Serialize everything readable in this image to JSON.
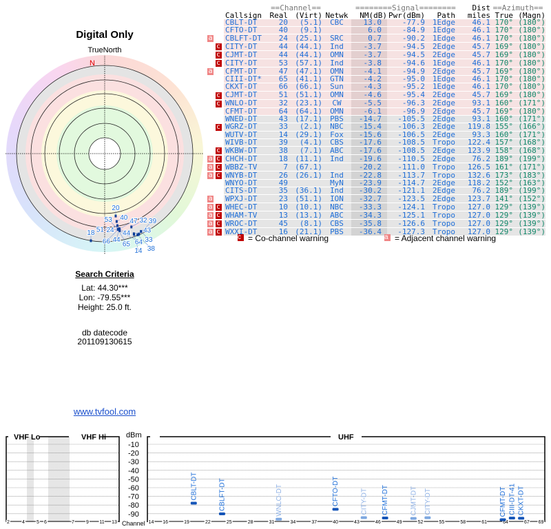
{
  "left_panel": {
    "title": "Digital Only",
    "north_label": "TrueNorth",
    "north_marker": "N",
    "search_criteria": {
      "heading": "Search Criteria",
      "lat": "Lat: 44.30***",
      "lon": "Lon: -79.55***",
      "height": "Height: 25.0 ft."
    },
    "datecode_label": "db datecode",
    "datecode": "201109130615",
    "site_link": "www.tvfool.com"
  },
  "table": {
    "group_headers": {
      "channel": "==Channel==",
      "signal": "========Signal========",
      "dist": "Dist",
      "azimuth": "==Azimuth=="
    },
    "columns": [
      "Callsign",
      "Real",
      "(Virt)",
      "Netwk",
      "NM(dB)",
      "Pwr(dBm)",
      "Path",
      "miles",
      "True",
      "(Magn)"
    ],
    "rows": [
      {
        "adj": "",
        "co": "",
        "callsign": "CBLT-DT",
        "real": "20",
        "virt": "(5.1)",
        "netwk": "CBC",
        "nm": "13.0",
        "pwr": "-77.9",
        "path": "1Edge",
        "dist": "46.1",
        "true": "170°",
        "magn": "(180°)"
      },
      {
        "adj": "",
        "co": "",
        "callsign": "CFTO-DT",
        "real": "40",
        "virt": "(9.1)",
        "netwk": "",
        "nm": "6.0",
        "pwr": "-84.9",
        "path": "1Edge",
        "dist": "46.1",
        "true": "170°",
        "magn": "(180°)"
      },
      {
        "adj": "a",
        "co": "",
        "callsign": "CBLFT-DT",
        "real": "24",
        "virt": "(25.1)",
        "netwk": "SRC",
        "nm": "0.7",
        "pwr": "-90.2",
        "path": "1Edge",
        "dist": "46.1",
        "true": "170°",
        "magn": "(180°)"
      },
      {
        "adj": "",
        "co": "c",
        "callsign": "CITY-DT",
        "real": "44",
        "virt": "(44.1)",
        "netwk": "Ind",
        "nm": "-3.7",
        "pwr": "-94.5",
        "path": "2Edge",
        "dist": "45.7",
        "true": "169°",
        "magn": "(180°)"
      },
      {
        "adj": "",
        "co": "c",
        "callsign": "CJMT-DT",
        "real": "44",
        "virt": "(44.1)",
        "netwk": "OMN",
        "nm": "-3.7",
        "pwr": "-94.5",
        "path": "2Edge",
        "dist": "45.7",
        "true": "169°",
        "magn": "(180°)"
      },
      {
        "adj": "",
        "co": "c",
        "callsign": "CITY-DT",
        "real": "53",
        "virt": "(57.1)",
        "netwk": "Ind",
        "nm": "-3.8",
        "pwr": "-94.6",
        "path": "1Edge",
        "dist": "46.1",
        "true": "170°",
        "magn": "(180°)"
      },
      {
        "adj": "a",
        "co": "",
        "callsign": "CFMT-DT",
        "real": "47",
        "virt": "(47.1)",
        "netwk": "OMN",
        "nm": "-4.1",
        "pwr": "-94.9",
        "path": "2Edge",
        "dist": "45.7",
        "true": "169°",
        "magn": "(180°)"
      },
      {
        "adj": "",
        "co": "",
        "callsign": "CIII-DT*",
        "real": "65",
        "virt": "(41.1)",
        "netwk": "GTN",
        "nm": "-4.2",
        "pwr": "-95.0",
        "path": "1Edge",
        "dist": "46.1",
        "true": "170°",
        "magn": "(180°)"
      },
      {
        "adj": "",
        "co": "",
        "callsign": "CKXT-DT",
        "real": "66",
        "virt": "(66.1)",
        "netwk": "Sun",
        "nm": "-4.3",
        "pwr": "-95.2",
        "path": "1Edge",
        "dist": "46.1",
        "true": "170°",
        "magn": "(180°)"
      },
      {
        "adj": "",
        "co": "c",
        "callsign": "CJMT-DT",
        "real": "51",
        "virt": "(51.1)",
        "netwk": "OMN",
        "nm": "-4.6",
        "pwr": "-95.4",
        "path": "2Edge",
        "dist": "45.7",
        "true": "169°",
        "magn": "(180°)"
      },
      {
        "adj": "",
        "co": "c",
        "callsign": "WNLO-DT",
        "real": "32",
        "virt": "(23.1)",
        "netwk": "CW",
        "nm": "-5.5",
        "pwr": "-96.3",
        "path": "2Edge",
        "dist": "93.1",
        "true": "160°",
        "magn": "(171°)"
      },
      {
        "adj": "",
        "co": "",
        "callsign": "CFMT-DT",
        "real": "64",
        "virt": "(64.1)",
        "netwk": "OMN",
        "nm": "-6.1",
        "pwr": "-96.9",
        "path": "2Edge",
        "dist": "45.7",
        "true": "169°",
        "magn": "(180°)"
      },
      {
        "adj": "",
        "co": "",
        "callsign": "WNED-DT",
        "real": "43",
        "virt": "(17.1)",
        "netwk": "PBS",
        "nm": "-14.7",
        "pwr": "-105.5",
        "path": "2Edge",
        "dist": "93.1",
        "true": "160°",
        "magn": "(171°)"
      },
      {
        "adj": "",
        "co": "c",
        "callsign": "WGRZ-DT",
        "real": "33",
        "virt": "(2.1)",
        "netwk": "NBC",
        "nm": "-15.4",
        "pwr": "-106.3",
        "path": "2Edge",
        "dist": "119.8",
        "true": "155°",
        "magn": "(166°)"
      },
      {
        "adj": "",
        "co": "",
        "callsign": "WUTV-DT",
        "real": "14",
        "virt": "(29.1)",
        "netwk": "Fox",
        "nm": "-15.6",
        "pwr": "-106.5",
        "path": "2Edge",
        "dist": "93.3",
        "true": "160°",
        "magn": "(171°)"
      },
      {
        "adj": "",
        "co": "",
        "callsign": "WIVB-DT",
        "real": "39",
        "virt": "(4.1)",
        "netwk": "CBS",
        "nm": "-17.6",
        "pwr": "-108.5",
        "path": "Tropo",
        "dist": "122.4",
        "true": "157°",
        "magn": "(168°)"
      },
      {
        "adj": "",
        "co": "c",
        "callsign": "WKBW-DT",
        "real": "38",
        "virt": "(7.1)",
        "netwk": "ABC",
        "nm": "-17.6",
        "pwr": "-108.5",
        "path": "2Edge",
        "dist": "123.9",
        "true": "158°",
        "magn": "(168°)"
      },
      {
        "adj": "a",
        "co": "c",
        "callsign": "CHCH-DT",
        "real": "18",
        "virt": "(11.1)",
        "netwk": "Ind",
        "nm": "-19.6",
        "pwr": "-110.5",
        "path": "2Edge",
        "dist": "76.2",
        "true": "189°",
        "magn": "(199°)"
      },
      {
        "adj": "a",
        "co": "c",
        "callsign": "WBBZ-TV",
        "real": "7",
        "virt": "(67.1)",
        "netwk": "",
        "nm": "-20.2",
        "pwr": "-111.0",
        "path": "Tropo",
        "dist": "126.5",
        "true": "161°",
        "magn": "(171°)"
      },
      {
        "adj": "a",
        "co": "c",
        "callsign": "WNYB-DT",
        "real": "26",
        "virt": "(26.1)",
        "netwk": "Ind",
        "nm": "-22.8",
        "pwr": "-113.7",
        "path": "Tropo",
        "dist": "132.6",
        "true": "173°",
        "magn": "(183°)"
      },
      {
        "adj": "",
        "co": "",
        "callsign": "WNYO-DT",
        "real": "49",
        "virt": "",
        "netwk": "MyN",
        "nm": "-23.9",
        "pwr": "-114.7",
        "path": "2Edge",
        "dist": "118.2",
        "true": "152°",
        "magn": "(163°)"
      },
      {
        "adj": "",
        "co": "",
        "callsign": "CITS-DT",
        "real": "35",
        "virt": "(36.1)",
        "netwk": "Ind",
        "nm": "-30.2",
        "pwr": "-121.1",
        "path": "2Edge",
        "dist": "76.2",
        "true": "189°",
        "magn": "(199°)"
      },
      {
        "adj": "a",
        "co": "",
        "callsign": "WPXJ-DT",
        "real": "23",
        "virt": "(51.1)",
        "netwk": "ION",
        "nm": "-32.7",
        "pwr": "-123.5",
        "path": "2Edge",
        "dist": "123.7",
        "true": "141°",
        "magn": "(152°)"
      },
      {
        "adj": "a",
        "co": "c",
        "callsign": "WHEC-DT",
        "real": "10",
        "virt": "(10.1)",
        "netwk": "NBC",
        "nm": "-33.3",
        "pwr": "-124.1",
        "path": "Tropo",
        "dist": "127.0",
        "true": "129°",
        "magn": "(139°)"
      },
      {
        "adj": "a",
        "co": "c",
        "callsign": "WHAM-TV",
        "real": "13",
        "virt": "(13.1)",
        "netwk": "ABC",
        "nm": "-34.3",
        "pwr": "-125.1",
        "path": "Tropo",
        "dist": "127.0",
        "true": "129°",
        "magn": "(139°)"
      },
      {
        "adj": "a",
        "co": "c",
        "callsign": "WROC-DT",
        "real": "45",
        "virt": "(8.1)",
        "netwk": "CBS",
        "nm": "-35.8",
        "pwr": "-126.6",
        "path": "Tropo",
        "dist": "127.0",
        "true": "129°",
        "magn": "(139°)"
      },
      {
        "adj": "a",
        "co": "c",
        "callsign": "WXXI-DT",
        "real": "16",
        "virt": "(21.1)",
        "netwk": "PBS",
        "nm": "-36.4",
        "pwr": "-127.3",
        "path": "Tropo",
        "dist": "127.0",
        "true": "129°",
        "magn": "(139°)"
      }
    ],
    "pink_row_count": 12
  },
  "legend": {
    "co_symbol": "c",
    "co_label": "= Co-channel warning",
    "adj_symbol": "a",
    "adj_label": "= Adjacent channel warning"
  },
  "colors": {
    "station_text": "#1f6fd8",
    "azimuth_text": "#12886a",
    "co_warning": "#c00000",
    "adj_warning": "#f08585",
    "bar_strong": "#1555b8",
    "bar_weak": "#7ea8e0"
  },
  "chart_data": {
    "type": "bar",
    "title": "",
    "ylabel": "dBm",
    "xlabel": "Channel",
    "ylim": [
      -100,
      0
    ],
    "yticks": [
      "-10",
      "-20",
      "-30",
      "-40",
      "-50",
      "-60",
      "-70",
      "-80",
      "-90"
    ],
    "bands": {
      "vhf_lo": "VHF Lo",
      "vhf_hi": "VHF Hi",
      "uhf": "UHF"
    },
    "vhf_ticks": [
      "2",
      "4",
      "5",
      "6",
      "7",
      "9",
      "11",
      "13"
    ],
    "uhf_ticks": [
      "14",
      "16",
      "19",
      "22",
      "25",
      "28",
      "31",
      "34",
      "37",
      "40",
      "43",
      "46",
      "49",
      "52",
      "55",
      "58",
      "61",
      "64",
      "67",
      "69"
    ],
    "stations": [
      {
        "label": "CBLT-DT",
        "channel": 20,
        "dbm": -77.9,
        "strength": "strong"
      },
      {
        "label": "CBLFT-DT",
        "channel": 24,
        "dbm": -90.2,
        "strength": "strong"
      },
      {
        "label": "WNLO-DT",
        "channel": 32,
        "dbm": -96.3,
        "strength": "weak"
      },
      {
        "label": "CFTO-DT",
        "channel": 40,
        "dbm": -84.9,
        "strength": "strong"
      },
      {
        "label": "CITY-DT",
        "channel": 44,
        "dbm": -94.5,
        "strength": "weak"
      },
      {
        "label": "CFMT-DT",
        "channel": 47,
        "dbm": -94.9,
        "strength": "strong"
      },
      {
        "label": "CJMT-DT",
        "channel": 51,
        "dbm": -95.4,
        "strength": "weak"
      },
      {
        "label": "CITY-DT",
        "channel": 53,
        "dbm": -94.6,
        "strength": "weak"
      },
      {
        "label": "CFMT-DT",
        "channel": 64,
        "dbm": -96.9,
        "strength": "strong"
      },
      {
        "label": "CIII-DT-41",
        "channel": 65,
        "dbm": -95.0,
        "strength": "strong"
      },
      {
        "label": "CKXT-DT",
        "channel": 66,
        "dbm": -95.2,
        "strength": "strong"
      }
    ]
  }
}
